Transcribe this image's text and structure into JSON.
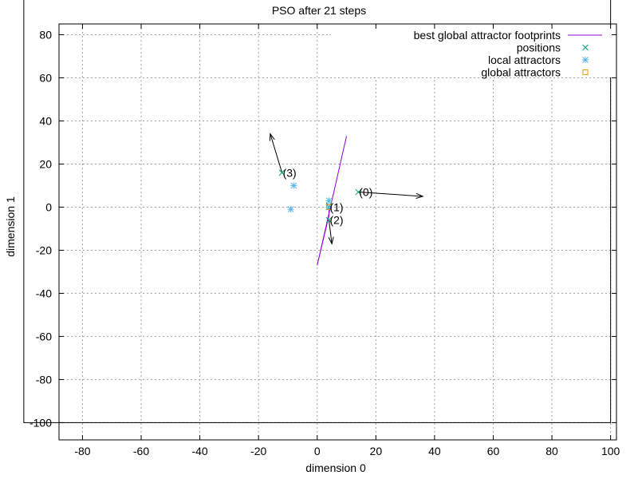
{
  "chart_data": {
    "type": "scatter",
    "title": "PSO after 21 steps",
    "xlabel": "dimension 0",
    "ylabel": "dimension 1",
    "xlim": [
      -88,
      102
    ],
    "ylim": [
      -108,
      85
    ],
    "xticks": [
      -80,
      -60,
      -40,
      -20,
      0,
      20,
      40,
      60,
      80,
      100
    ],
    "yticks": [
      -100,
      -80,
      -60,
      -40,
      -20,
      0,
      20,
      40,
      60,
      80
    ],
    "grid": true,
    "legend_position": "top-right",
    "legend": [
      {
        "label": "best global attractor footprints",
        "marker": "line",
        "color": "#9400d3"
      },
      {
        "label": "positions",
        "marker": "x",
        "color": "#009e73"
      },
      {
        "label": "local attractors",
        "marker": "star",
        "color": "#56b4e9"
      },
      {
        "label": "global attractors",
        "marker": "square",
        "color": "#e69f00"
      }
    ],
    "footprints": [
      [
        10,
        33
      ],
      [
        0,
        -27
      ],
      [
        4,
        -4
      ],
      [
        4,
        0
      ]
    ],
    "positions": [
      {
        "label": "(0)",
        "x": 14,
        "y": 7
      },
      {
        "label": "(1)",
        "x": 4,
        "y": 0
      },
      {
        "label": "(2)",
        "x": 4,
        "y": -6
      },
      {
        "label": "(3)",
        "x": -12,
        "y": 16
      }
    ],
    "velocities": [
      {
        "from": [
          14,
          7
        ],
        "to": [
          36,
          5
        ]
      },
      {
        "from": [
          4,
          0
        ],
        "to": [
          4,
          -1
        ]
      },
      {
        "from": [
          4,
          -6
        ],
        "to": [
          5,
          -17
        ]
      },
      {
        "from": [
          -12,
          16
        ],
        "to": [
          -16,
          34
        ]
      }
    ],
    "local_attractors": [
      [
        4,
        3
      ],
      [
        -8,
        10
      ],
      [
        -9,
        -1
      ],
      [
        4,
        0
      ]
    ],
    "global_attractors": [
      [
        4,
        0
      ]
    ],
    "boundary": {
      "xmin": -100,
      "xmax": 100,
      "ymin": -100,
      "ymax": 100
    }
  }
}
